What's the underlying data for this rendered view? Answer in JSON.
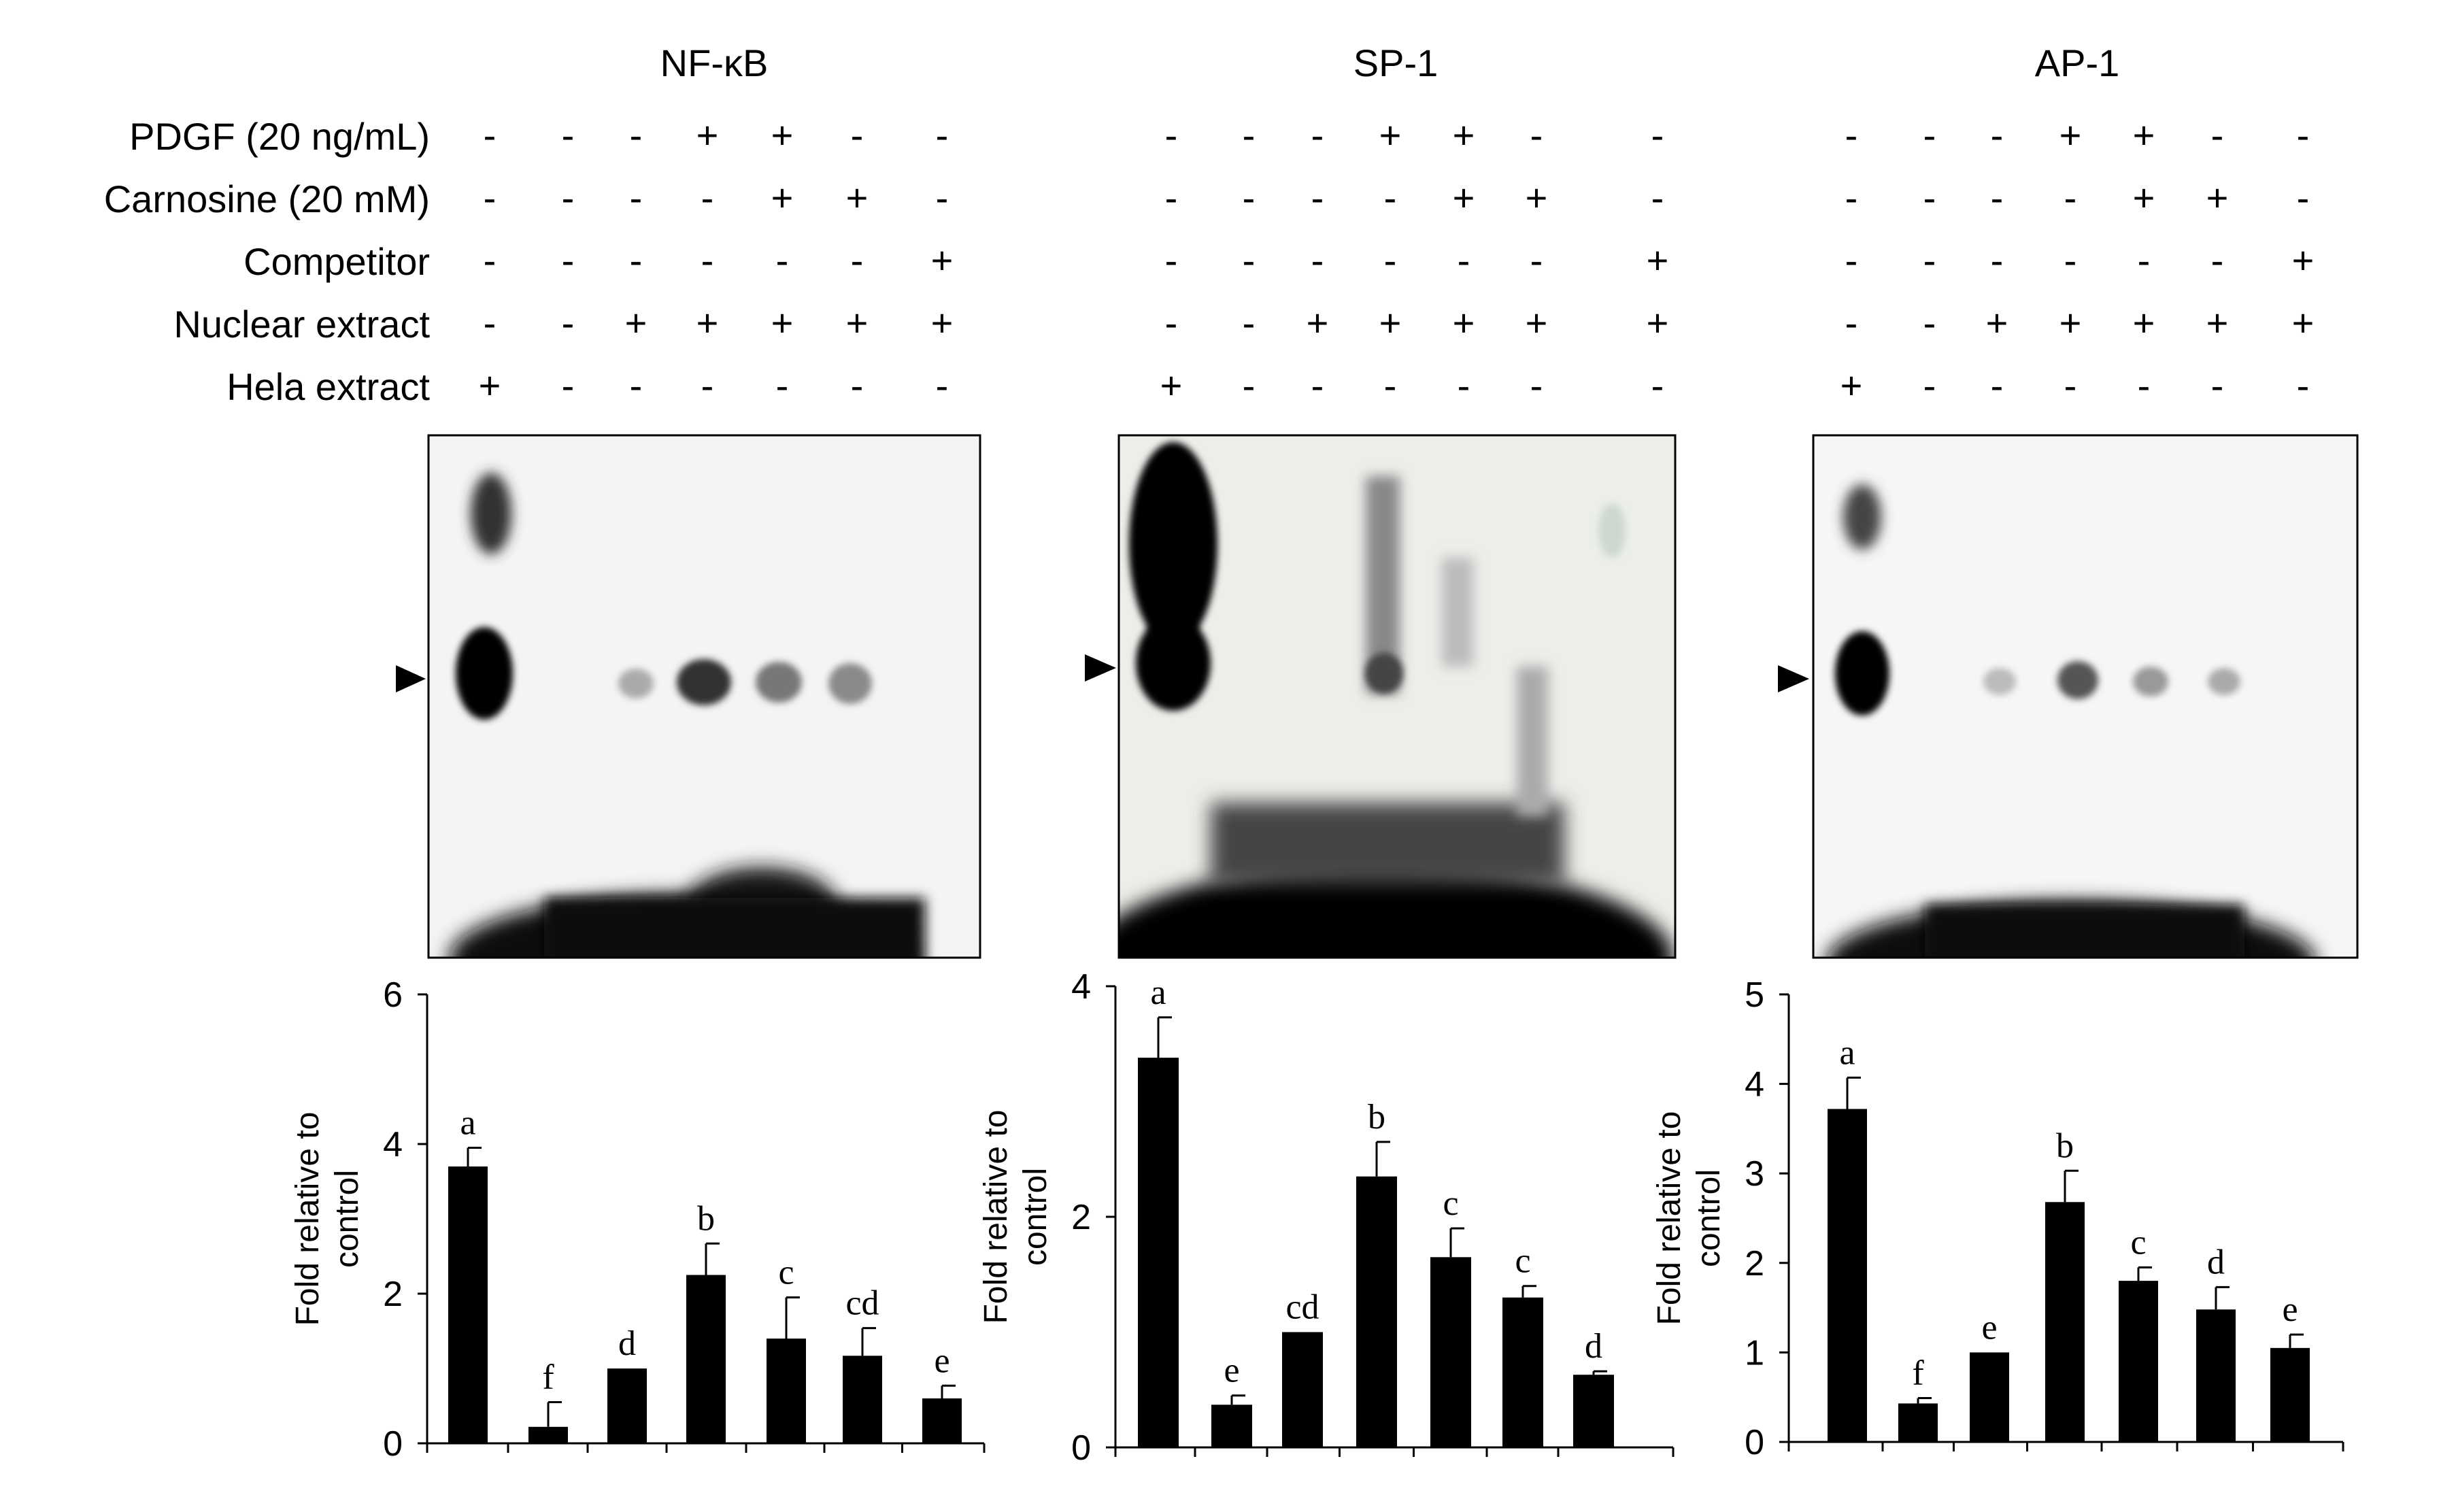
{
  "figure": {
    "row_labels": [
      "PDGF (20 ng/mL)",
      "Carnosine (20 mM)",
      "Competitor",
      "Nuclear extract",
      "Hela extract"
    ],
    "panels": [
      {
        "title": "NF-κB",
        "conditions": [
          [
            "-",
            "-",
            "-",
            "+",
            "+",
            "-",
            "-"
          ],
          [
            "-",
            "-",
            "-",
            "-",
            "+",
            "+",
            "-"
          ],
          [
            "-",
            "-",
            "-",
            "-",
            "-",
            "-",
            "+"
          ],
          [
            "-",
            "-",
            "+",
            "+",
            "+",
            "+",
            "+"
          ],
          [
            "+",
            "-",
            "-",
            "-",
            "-",
            "-",
            "-"
          ]
        ]
      },
      {
        "title": "SP-1",
        "conditions": [
          [
            "-",
            "-",
            "-",
            "+",
            "+",
            "-",
            "-"
          ],
          [
            "-",
            "-",
            "-",
            "-",
            "+",
            "+",
            "-"
          ],
          [
            "-",
            "-",
            "-",
            "-",
            "-",
            "-",
            "+"
          ],
          [
            "-",
            "-",
            "+",
            "+",
            "+",
            "+",
            "+"
          ],
          [
            "+",
            "-",
            "-",
            "-",
            "-",
            "-",
            "-"
          ]
        ]
      },
      {
        "title": "AP-1",
        "conditions": [
          [
            "-",
            "-",
            "-",
            "+",
            "+",
            "-",
            "-"
          ],
          [
            "-",
            "-",
            "-",
            "-",
            "+",
            "+",
            "-"
          ],
          [
            "-",
            "-",
            "-",
            "-",
            "-",
            "-",
            "+"
          ],
          [
            "-",
            "-",
            "+",
            "+",
            "+",
            "+",
            "+"
          ],
          [
            "+",
            "-",
            "-",
            "-",
            "-",
            "-",
            "-"
          ]
        ]
      }
    ]
  },
  "chart_data": [
    {
      "type": "bar",
      "panel": "NF-κB",
      "ylabel": "Fold relative to control",
      "ylim": [
        0,
        6
      ],
      "yticks": [
        0,
        2,
        4,
        6
      ],
      "values": [
        3.7,
        0.22,
        1.0,
        2.25,
        1.4,
        1.17,
        0.6
      ],
      "errors": [
        0.25,
        0.33,
        0,
        0.42,
        0.55,
        0.37,
        0.17
      ],
      "letters": [
        "a",
        "f",
        "d",
        "b",
        "c",
        "cd",
        "e"
      ]
    },
    {
      "type": "bar",
      "panel": "SP-1",
      "ylabel": "Fold relative to control",
      "ylim": [
        0,
        4
      ],
      "yticks": [
        0,
        2,
        4
      ],
      "values": [
        3.38,
        0.37,
        1.0,
        2.35,
        1.65,
        1.3,
        0.63
      ],
      "errors": [
        0.35,
        0.08,
        0,
        0.3,
        0.25,
        0.1,
        0.03
      ],
      "letters": [
        "a",
        "e",
        "cd",
        "b",
        "c",
        "c",
        "d"
      ]
    },
    {
      "type": "bar",
      "panel": "AP-1",
      "ylabel": "Fold relative to control",
      "ylim": [
        0,
        5
      ],
      "yticks": [
        0,
        1,
        2,
        3,
        4,
        5
      ],
      "values": [
        3.72,
        0.43,
        1.0,
        2.68,
        1.8,
        1.48,
        1.05
      ],
      "errors": [
        0.35,
        0.06,
        0,
        0.35,
        0.15,
        0.25,
        0.15
      ],
      "letters": [
        "a",
        "f",
        "e",
        "b",
        "c",
        "d",
        "e"
      ]
    }
  ]
}
